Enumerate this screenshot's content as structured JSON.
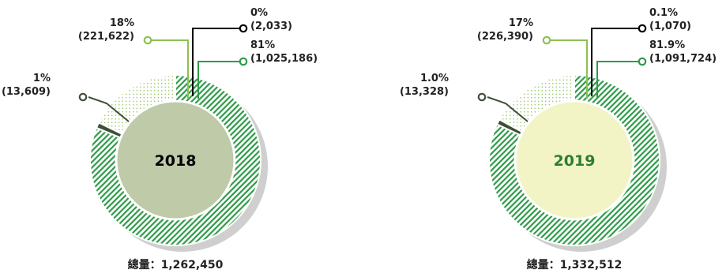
{
  "colors": {
    "main_green": "#2e9a48",
    "light_green": "#8cc152",
    "dark_olive": "#3f4f37",
    "black": "#000000",
    "shadow": "#cfcfcf",
    "center_2018": "#bfcaa9",
    "center_2019": "#f2f4c6",
    "year_2018": "#000000",
    "year_2019": "#2e7d32"
  },
  "chart_data": [
    {
      "type": "pie",
      "title": "2018",
      "total_label": "總量：1,262,450",
      "total": 1262450,
      "slices": [
        {
          "value": 1025186,
          "percent": "81%",
          "label": "(1,025,186)",
          "color_key": "main_green",
          "pattern": "hatch"
        },
        {
          "value": 13609,
          "percent": "1%",
          "label": "(13,609)",
          "color_key": "dark_olive",
          "pattern": "solid"
        },
        {
          "value": 221622,
          "percent": "18%",
          "label": "(221,622)",
          "color_key": "light_green",
          "pattern": "dots"
        },
        {
          "value": 2033,
          "percent": "0%",
          "label": "(2,033)",
          "color_key": "black",
          "pattern": "solid"
        }
      ]
    },
    {
      "type": "pie",
      "title": "2019",
      "total_label": "總量：1,332,512",
      "total": 1332512,
      "slices": [
        {
          "value": 1091724,
          "percent": "81.9%",
          "label": "(1,091,724)",
          "color_key": "main_green",
          "pattern": "hatch"
        },
        {
          "value": 13328,
          "percent": "1.0%",
          "label": "(13,328)",
          "color_key": "dark_olive",
          "pattern": "solid"
        },
        {
          "value": 226390,
          "percent": "17%",
          "label": "(226,390)",
          "color_key": "light_green",
          "pattern": "dots"
        },
        {
          "value": 1070,
          "percent": "0.1%",
          "label": "(1,070)",
          "color_key": "black",
          "pattern": "solid"
        }
      ]
    }
  ]
}
